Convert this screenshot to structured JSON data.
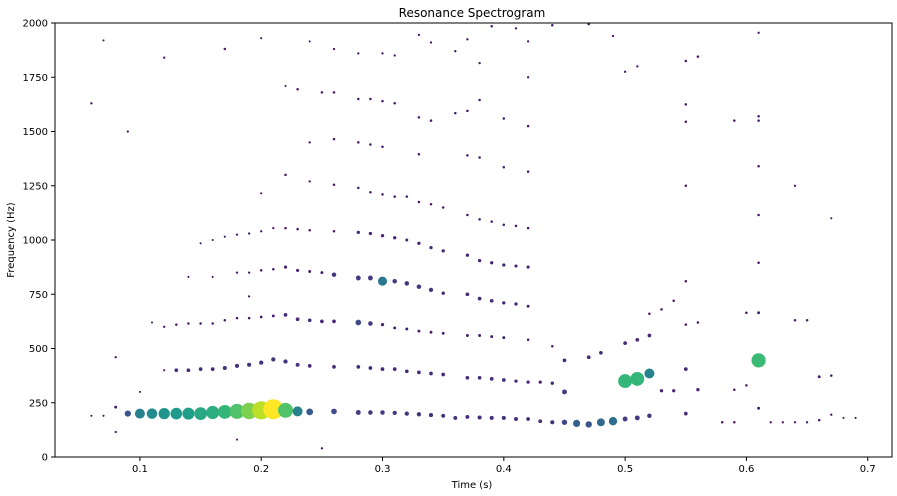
{
  "chart_data": {
    "type": "scatter",
    "title": "Resonance Spectrogram",
    "xlabel": "Time (s)",
    "ylabel": "Frequency (Hz)",
    "xlim": [
      0.03,
      0.72
    ],
    "ylim": [
      0,
      2000
    ],
    "grid": false,
    "colormap": "viridis",
    "x_ticks": [
      0.1,
      0.2,
      0.3,
      0.4,
      0.5,
      0.6,
      0.7
    ],
    "x_tick_labels": [
      "0.1",
      "0.2",
      "0.3",
      "0.4",
      "0.5",
      "0.6",
      "0.7"
    ],
    "y_ticks": [
      0,
      250,
      500,
      750,
      1000,
      1250,
      1500,
      1750,
      2000
    ],
    "y_tick_labels": [
      "0",
      "250",
      "500",
      "750",
      "1000",
      "1250",
      "1500",
      "1750",
      "2000"
    ],
    "encoding": "each point: [time_s, frequency_hz, amplitude 0-1]; marker size and color scale with amplitude",
    "points": [
      [
        0.06,
        190,
        0.04
      ],
      [
        0.07,
        190,
        0.04
      ],
      [
        0.08,
        230,
        0.08
      ],
      [
        0.08,
        115,
        0.05
      ],
      [
        0.08,
        460,
        0.04
      ],
      [
        0.09,
        200,
        0.25
      ],
      [
        0.1,
        200,
        0.45
      ],
      [
        0.11,
        200,
        0.48
      ],
      [
        0.12,
        200,
        0.52
      ],
      [
        0.13,
        200,
        0.54
      ],
      [
        0.14,
        200,
        0.56
      ],
      [
        0.15,
        200,
        0.6
      ],
      [
        0.16,
        205,
        0.62
      ],
      [
        0.17,
        208,
        0.66
      ],
      [
        0.18,
        210,
        0.72
      ],
      [
        0.19,
        212,
        0.8
      ],
      [
        0.2,
        215,
        0.9
      ],
      [
        0.21,
        220,
        1.0
      ],
      [
        0.22,
        215,
        0.72
      ],
      [
        0.23,
        210,
        0.45
      ],
      [
        0.24,
        208,
        0.28
      ],
      [
        0.26,
        210,
        0.22
      ],
      [
        0.28,
        205,
        0.18
      ],
      [
        0.29,
        205,
        0.16
      ],
      [
        0.3,
        205,
        0.16
      ],
      [
        0.31,
        203,
        0.15
      ],
      [
        0.32,
        200,
        0.15
      ],
      [
        0.33,
        197,
        0.15
      ],
      [
        0.34,
        193,
        0.14
      ],
      [
        0.35,
        190,
        0.13
      ],
      [
        0.36,
        180,
        0.13
      ],
      [
        0.37,
        185,
        0.13
      ],
      [
        0.38,
        182,
        0.14
      ],
      [
        0.39,
        180,
        0.14
      ],
      [
        0.4,
        180,
        0.14
      ],
      [
        0.41,
        175,
        0.13
      ],
      [
        0.42,
        175,
        0.12
      ],
      [
        0.43,
        165,
        0.12
      ],
      [
        0.44,
        160,
        0.14
      ],
      [
        0.45,
        160,
        0.2
      ],
      [
        0.46,
        155,
        0.3
      ],
      [
        0.47,
        150,
        0.26
      ],
      [
        0.48,
        160,
        0.34
      ],
      [
        0.49,
        165,
        0.36
      ],
      [
        0.5,
        175,
        0.18
      ],
      [
        0.51,
        180,
        0.18
      ],
      [
        0.52,
        190,
        0.16
      ],
      [
        0.55,
        200,
        0.12
      ],
      [
        0.58,
        160,
        0.06
      ],
      [
        0.59,
        160,
        0.06
      ],
      [
        0.61,
        225,
        0.08
      ],
      [
        0.62,
        160,
        0.05
      ],
      [
        0.63,
        160,
        0.05
      ],
      [
        0.64,
        160,
        0.05
      ],
      [
        0.65,
        160,
        0.05
      ],
      [
        0.66,
        170,
        0.06
      ],
      [
        0.67,
        195,
        0.05
      ],
      [
        0.68,
        180,
        0.04
      ],
      [
        0.69,
        180,
        0.04
      ],
      [
        0.12,
        400,
        0.04
      ],
      [
        0.13,
        400,
        0.12
      ],
      [
        0.14,
        400,
        0.12
      ],
      [
        0.15,
        405,
        0.12
      ],
      [
        0.16,
        405,
        0.12
      ],
      [
        0.17,
        410,
        0.14
      ],
      [
        0.18,
        420,
        0.14
      ],
      [
        0.19,
        425,
        0.14
      ],
      [
        0.2,
        435,
        0.15
      ],
      [
        0.21,
        450,
        0.15
      ],
      [
        0.22,
        440,
        0.15
      ],
      [
        0.23,
        425,
        0.13
      ],
      [
        0.24,
        420,
        0.12
      ],
      [
        0.26,
        415,
        0.12
      ],
      [
        0.28,
        415,
        0.12
      ],
      [
        0.29,
        410,
        0.12
      ],
      [
        0.3,
        405,
        0.12
      ],
      [
        0.31,
        405,
        0.12
      ],
      [
        0.32,
        395,
        0.12
      ],
      [
        0.33,
        390,
        0.12
      ],
      [
        0.34,
        385,
        0.12
      ],
      [
        0.35,
        380,
        0.12
      ],
      [
        0.37,
        365,
        0.12
      ],
      [
        0.38,
        365,
        0.12
      ],
      [
        0.39,
        360,
        0.12
      ],
      [
        0.4,
        355,
        0.12
      ],
      [
        0.41,
        350,
        0.1
      ],
      [
        0.42,
        345,
        0.1
      ],
      [
        0.43,
        345,
        0.1
      ],
      [
        0.44,
        340,
        0.1
      ],
      [
        0.45,
        300,
        0.18
      ],
      [
        0.45,
        445,
        0.12
      ],
      [
        0.47,
        460,
        0.12
      ],
      [
        0.48,
        480,
        0.12
      ],
      [
        0.5,
        525,
        0.12
      ],
      [
        0.51,
        540,
        0.12
      ],
      [
        0.52,
        560,
        0.12
      ],
      [
        0.5,
        350,
        0.66
      ],
      [
        0.51,
        360,
        0.66
      ],
      [
        0.52,
        385,
        0.45
      ],
      [
        0.53,
        305,
        0.1
      ],
      [
        0.54,
        305,
        0.1
      ],
      [
        0.55,
        405,
        0.12
      ],
      [
        0.56,
        310,
        0.1
      ],
      [
        0.59,
        310,
        0.06
      ],
      [
        0.6,
        330,
        0.06
      ],
      [
        0.61,
        445,
        0.68
      ],
      [
        0.66,
        370,
        0.08
      ],
      [
        0.67,
        375,
        0.06
      ],
      [
        0.11,
        620,
        0.04
      ],
      [
        0.12,
        600,
        0.05
      ],
      [
        0.13,
        610,
        0.06
      ],
      [
        0.14,
        615,
        0.06
      ],
      [
        0.15,
        615,
        0.06
      ],
      [
        0.16,
        615,
        0.06
      ],
      [
        0.17,
        630,
        0.06
      ],
      [
        0.18,
        640,
        0.06
      ],
      [
        0.19,
        640,
        0.06
      ],
      [
        0.2,
        645,
        0.07
      ],
      [
        0.21,
        650,
        0.08
      ],
      [
        0.22,
        655,
        0.12
      ],
      [
        0.23,
        635,
        0.12
      ],
      [
        0.24,
        630,
        0.12
      ],
      [
        0.25,
        625,
        0.12
      ],
      [
        0.26,
        625,
        0.12
      ],
      [
        0.28,
        620,
        0.22
      ],
      [
        0.29,
        615,
        0.16
      ],
      [
        0.3,
        610,
        0.1
      ],
      [
        0.31,
        595,
        0.08
      ],
      [
        0.32,
        590,
        0.08
      ],
      [
        0.33,
        580,
        0.08
      ],
      [
        0.34,
        575,
        0.08
      ],
      [
        0.35,
        570,
        0.08
      ],
      [
        0.37,
        560,
        0.08
      ],
      [
        0.38,
        560,
        0.08
      ],
      [
        0.39,
        555,
        0.08
      ],
      [
        0.4,
        550,
        0.08
      ],
      [
        0.42,
        540,
        0.06
      ],
      [
        0.44,
        510,
        0.06
      ],
      [
        0.52,
        660,
        0.06
      ],
      [
        0.53,
        680,
        0.06
      ],
      [
        0.54,
        720,
        0.06
      ],
      [
        0.55,
        610,
        0.06
      ],
      [
        0.56,
        620,
        0.06
      ],
      [
        0.6,
        665,
        0.06
      ],
      [
        0.61,
        665,
        0.08
      ],
      [
        0.64,
        630,
        0.06
      ],
      [
        0.65,
        630,
        0.06
      ],
      [
        0.14,
        830,
        0.04
      ],
      [
        0.16,
        830,
        0.04
      ],
      [
        0.18,
        850,
        0.05
      ],
      [
        0.19,
        850,
        0.05
      ],
      [
        0.2,
        860,
        0.06
      ],
      [
        0.21,
        865,
        0.06
      ],
      [
        0.22,
        875,
        0.09
      ],
      [
        0.23,
        860,
        0.09
      ],
      [
        0.24,
        855,
        0.08
      ],
      [
        0.25,
        850,
        0.08
      ],
      [
        0.26,
        840,
        0.16
      ],
      [
        0.28,
        825,
        0.18
      ],
      [
        0.29,
        825,
        0.18
      ],
      [
        0.3,
        810,
        0.4
      ],
      [
        0.31,
        810,
        0.16
      ],
      [
        0.32,
        800,
        0.16
      ],
      [
        0.33,
        785,
        0.16
      ],
      [
        0.34,
        770,
        0.15
      ],
      [
        0.35,
        755,
        0.1
      ],
      [
        0.37,
        750,
        0.12
      ],
      [
        0.38,
        730,
        0.12
      ],
      [
        0.39,
        720,
        0.12
      ],
      [
        0.4,
        710,
        0.1
      ],
      [
        0.41,
        705,
        0.1
      ],
      [
        0.42,
        695,
        0.08
      ],
      [
        0.55,
        810,
        0.06
      ],
      [
        0.61,
        895,
        0.06
      ],
      [
        0.15,
        985,
        0.04
      ],
      [
        0.16,
        1000,
        0.04
      ],
      [
        0.17,
        1015,
        0.04
      ],
      [
        0.18,
        1025,
        0.05
      ],
      [
        0.19,
        1030,
        0.05
      ],
      [
        0.2,
        1040,
        0.05
      ],
      [
        0.21,
        1055,
        0.05
      ],
      [
        0.22,
        1055,
        0.06
      ],
      [
        0.23,
        1050,
        0.06
      ],
      [
        0.24,
        1045,
        0.06
      ],
      [
        0.26,
        1040,
        0.06
      ],
      [
        0.28,
        1035,
        0.1
      ],
      [
        0.29,
        1030,
        0.1
      ],
      [
        0.3,
        1020,
        0.1
      ],
      [
        0.31,
        1010,
        0.1
      ],
      [
        0.32,
        1000,
        0.08
      ],
      [
        0.33,
        985,
        0.1
      ],
      [
        0.34,
        965,
        0.1
      ],
      [
        0.35,
        950,
        0.1
      ],
      [
        0.37,
        930,
        0.1
      ],
      [
        0.38,
        905,
        0.1
      ],
      [
        0.39,
        895,
        0.1
      ],
      [
        0.4,
        885,
        0.1
      ],
      [
        0.41,
        880,
        0.09
      ],
      [
        0.42,
        875,
        0.09
      ],
      [
        0.61,
        1115,
        0.06
      ],
      [
        0.67,
        1100,
        0.04
      ],
      [
        0.2,
        1215,
        0.04
      ],
      [
        0.22,
        1300,
        0.06
      ],
      [
        0.24,
        1270,
        0.05
      ],
      [
        0.26,
        1255,
        0.06
      ],
      [
        0.28,
        1240,
        0.06
      ],
      [
        0.29,
        1220,
        0.06
      ],
      [
        0.3,
        1210,
        0.06
      ],
      [
        0.31,
        1200,
        0.06
      ],
      [
        0.32,
        1200,
        0.06
      ],
      [
        0.33,
        1175,
        0.06
      ],
      [
        0.34,
        1165,
        0.06
      ],
      [
        0.35,
        1150,
        0.06
      ],
      [
        0.37,
        1115,
        0.06
      ],
      [
        0.38,
        1095,
        0.06
      ],
      [
        0.39,
        1085,
        0.06
      ],
      [
        0.4,
        1070,
        0.06
      ],
      [
        0.41,
        1065,
        0.06
      ],
      [
        0.42,
        1055,
        0.06
      ],
      [
        0.55,
        1250,
        0.06
      ],
      [
        0.61,
        1340,
        0.06
      ],
      [
        0.64,
        1250,
        0.05
      ],
      [
        0.24,
        1450,
        0.05
      ],
      [
        0.26,
        1465,
        0.06
      ],
      [
        0.28,
        1450,
        0.06
      ],
      [
        0.29,
        1440,
        0.06
      ],
      [
        0.3,
        1430,
        0.06
      ],
      [
        0.33,
        1395,
        0.06
      ],
      [
        0.37,
        1390,
        0.06
      ],
      [
        0.38,
        1380,
        0.06
      ],
      [
        0.4,
        1335,
        0.06
      ],
      [
        0.42,
        1315,
        0.06
      ],
      [
        0.22,
        1710,
        0.04
      ],
      [
        0.23,
        1695,
        0.06
      ],
      [
        0.25,
        1680,
        0.06
      ],
      [
        0.26,
        1680,
        0.06
      ],
      [
        0.28,
        1650,
        0.06
      ],
      [
        0.29,
        1650,
        0.06
      ],
      [
        0.3,
        1640,
        0.06
      ],
      [
        0.31,
        1630,
        0.06
      ],
      [
        0.33,
        1565,
        0.06
      ],
      [
        0.34,
        1550,
        0.06
      ],
      [
        0.36,
        1585,
        0.06
      ],
      [
        0.37,
        1595,
        0.06
      ],
      [
        0.38,
        1645,
        0.06
      ],
      [
        0.4,
        1560,
        0.06
      ],
      [
        0.42,
        1525,
        0.06
      ],
      [
        0.06,
        1630,
        0.05
      ],
      [
        0.09,
        1500,
        0.05
      ],
      [
        0.55,
        1625,
        0.06
      ],
      [
        0.55,
        1545,
        0.06
      ],
      [
        0.59,
        1550,
        0.06
      ],
      [
        0.61,
        1570,
        0.06
      ],
      [
        0.61,
        1550,
        0.06
      ],
      [
        0.07,
        1920,
        0.04
      ],
      [
        0.12,
        1840,
        0.05
      ],
      [
        0.17,
        1880,
        0.06
      ],
      [
        0.2,
        1930,
        0.04
      ],
      [
        0.24,
        1915,
        0.04
      ],
      [
        0.26,
        1880,
        0.05
      ],
      [
        0.28,
        1860,
        0.05
      ],
      [
        0.3,
        1860,
        0.05
      ],
      [
        0.31,
        1850,
        0.05
      ],
      [
        0.33,
        1945,
        0.05
      ],
      [
        0.34,
        1910,
        0.05
      ],
      [
        0.36,
        1870,
        0.05
      ],
      [
        0.37,
        1925,
        0.05
      ],
      [
        0.38,
        1815,
        0.05
      ],
      [
        0.39,
        1985,
        0.06
      ],
      [
        0.41,
        1975,
        0.05
      ],
      [
        0.42,
        1915,
        0.05
      ],
      [
        0.42,
        1750,
        0.05
      ],
      [
        0.44,
        1990,
        0.06
      ],
      [
        0.47,
        1995,
        0.06
      ],
      [
        0.49,
        1940,
        0.05
      ],
      [
        0.5,
        1775,
        0.05
      ],
      [
        0.51,
        1800,
        0.05
      ],
      [
        0.55,
        1825,
        0.06
      ],
      [
        0.56,
        1845,
        0.06
      ],
      [
        0.61,
        1955,
        0.05
      ],
      [
        0.19,
        740,
        0.05
      ],
      [
        0.08,
        460,
        0.04
      ],
      [
        0.25,
        40,
        0.05
      ],
      [
        0.1,
        300,
        0.04
      ],
      [
        0.18,
        80,
        0.04
      ]
    ]
  }
}
